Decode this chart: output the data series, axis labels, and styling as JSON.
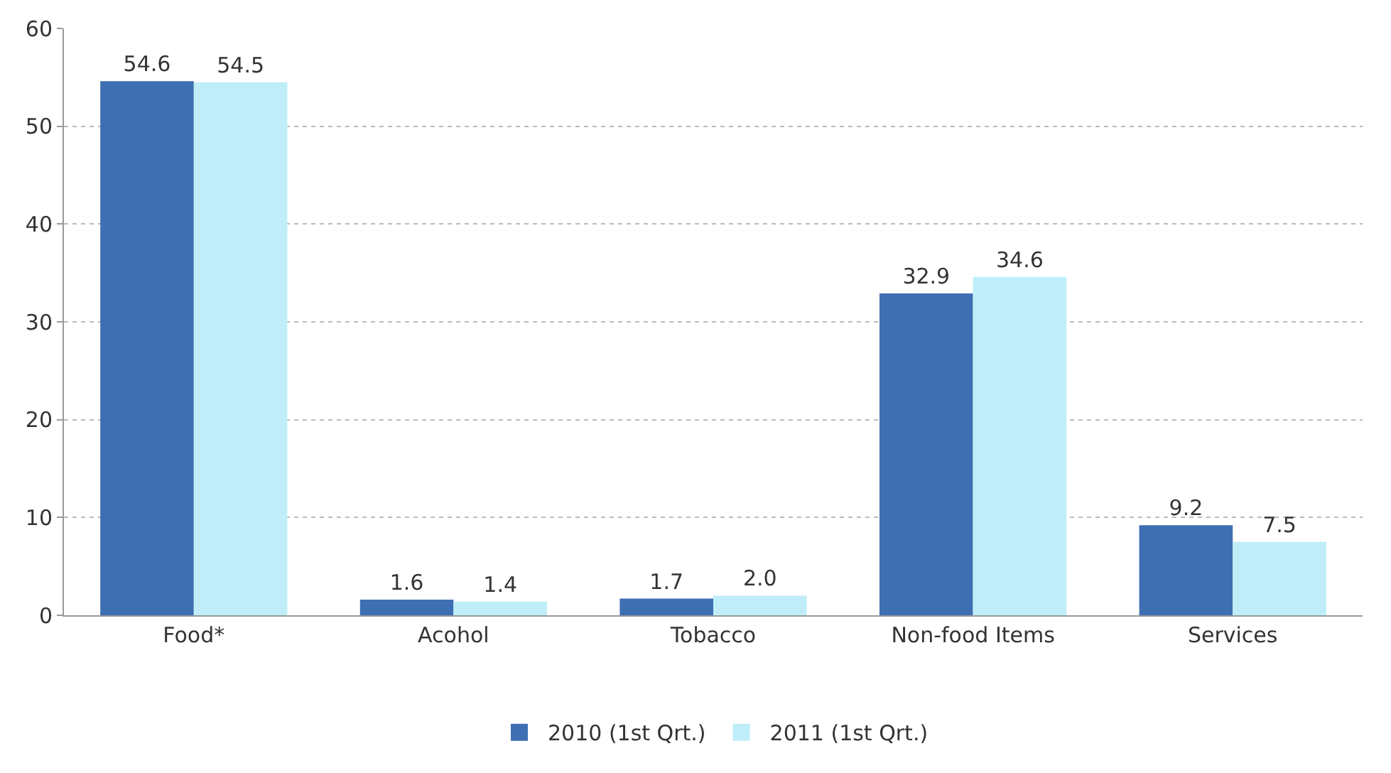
{
  "chart_data": {
    "type": "bar",
    "categories": [
      "Food*",
      "Acohol",
      "Tobacco",
      "Non-food Items",
      "Services"
    ],
    "series": [
      {
        "name": "2010 (1st Qrt.)",
        "color": "#3e6fb2",
        "values": [
          54.6,
          1.6,
          1.7,
          32.9,
          9.2
        ],
        "value_labels": [
          "54.6",
          "1.6",
          "1.7",
          "32.9",
          "9.2"
        ]
      },
      {
        "name": "2011 (1st Qrt.)",
        "color": "#bfeef8",
        "values": [
          54.5,
          1.4,
          2.0,
          34.6,
          7.5
        ],
        "value_labels": [
          "54.5",
          "1.4",
          "2.0",
          "34.6",
          "7.5"
        ]
      }
    ],
    "ylim": [
      0,
      60
    ],
    "yticks": [
      0,
      10,
      20,
      30,
      40,
      50,
      60
    ],
    "grid": "y",
    "legend": "bottom"
  }
}
